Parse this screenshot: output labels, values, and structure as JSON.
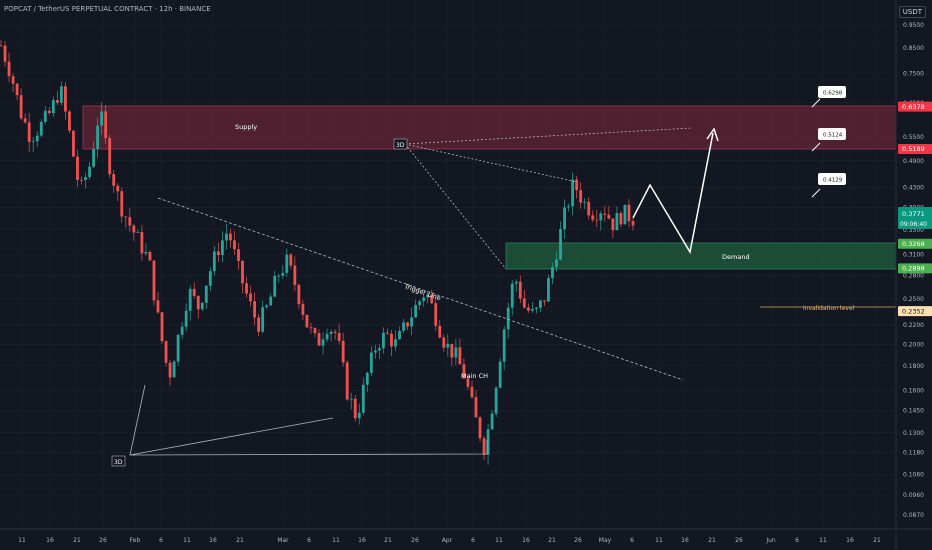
{
  "header": {
    "title": "POPCAT / TetherUS PERPETUAL CONTRACT · 12h · BINANCE",
    "currency": "USDT"
  },
  "colors": {
    "background": "#131722",
    "axis_text": "#787b86",
    "candle_up": "#26a69a",
    "candle_down": "#ef5350",
    "supply_zone": "#8b2a3b",
    "demand_zone": "#1f5f3d",
    "price_label": "#089981",
    "supply_label": "#f23645",
    "demand_label": "#4caf50",
    "invalidation_label": "#ffe0b2"
  },
  "chart_data": {
    "type": "candlestick",
    "scale": "log",
    "ylim": [
      0.08,
      0.95
    ],
    "y_ticks": [
      "0.9500",
      "0.8500",
      "0.7500",
      "0.6500",
      "0.5500",
      "0.4900",
      "0.4300",
      "0.3900",
      "0.3500",
      "0.3100",
      "0.2800",
      "0.2500",
      "0.2200",
      "0.2000",
      "0.1800",
      "0.1600",
      "0.1450",
      "0.1300",
      "0.1180",
      "0.1060",
      "0.0960",
      "0.0870"
    ],
    "x_ticks": [
      "11",
      "16",
      "21",
      "26",
      "Feb",
      "6",
      "11",
      "16",
      "21",
      "Mar",
      "6",
      "11",
      "16",
      "21",
      "26",
      "Apr",
      "6",
      "11",
      "16",
      "21",
      "26",
      "May",
      "6",
      "11",
      "16",
      "21",
      "26",
      "Jun",
      "6",
      "11",
      "16",
      "21"
    ],
    "price_path": [
      0.86,
      0.75,
      0.62,
      0.55,
      0.58,
      0.62,
      0.7,
      0.55,
      0.42,
      0.48,
      0.63,
      0.48,
      0.4,
      0.36,
      0.33,
      0.3,
      0.22,
      0.17,
      0.21,
      0.26,
      0.24,
      0.28,
      0.32,
      0.35,
      0.29,
      0.25,
      0.22,
      0.24,
      0.28,
      0.3,
      0.26,
      0.22,
      0.2,
      0.22,
      0.21,
      0.16,
      0.14,
      0.17,
      0.2,
      0.21,
      0.2,
      0.22,
      0.24,
      0.26,
      0.23,
      0.2,
      0.19,
      0.17,
      0.14,
      0.12,
      0.16,
      0.22,
      0.28,
      0.24,
      0.23,
      0.25,
      0.3,
      0.37,
      0.44,
      0.4,
      0.38,
      0.39,
      0.36,
      0.38,
      0.37
    ],
    "current_price": {
      "value": 0.3771,
      "countdown": "09:06:40"
    },
    "levels": {
      "supply_top": 0.6378,
      "supply_bottom": 0.5189,
      "demand_top": 0.3268,
      "demand_bottom": 0.2898,
      "invalidation": 0.2352
    },
    "price_labels": [
      {
        "text": "0.6378",
        "value": 0.6378,
        "kind": "supply"
      },
      {
        "text": "0.5189",
        "value": 0.5189,
        "kind": "supply"
      },
      {
        "text": "0.3268",
        "value": 0.3268,
        "kind": "demand"
      },
      {
        "text": "0.2898",
        "value": 0.2898,
        "kind": "demand"
      },
      {
        "text": "0.2352",
        "value": 0.2352,
        "kind": "invalidation"
      }
    ],
    "targets": [
      {
        "text": "0.6298"
      },
      {
        "text": "0.5124"
      },
      {
        "text": "0.4129"
      }
    ],
    "annotations": {
      "supply": "Supply",
      "demand": "Demand",
      "trigger_line": "Trigger Line",
      "main_ch": "Main CH",
      "invalidation": "invalidation level",
      "label_3d": "3D"
    }
  }
}
